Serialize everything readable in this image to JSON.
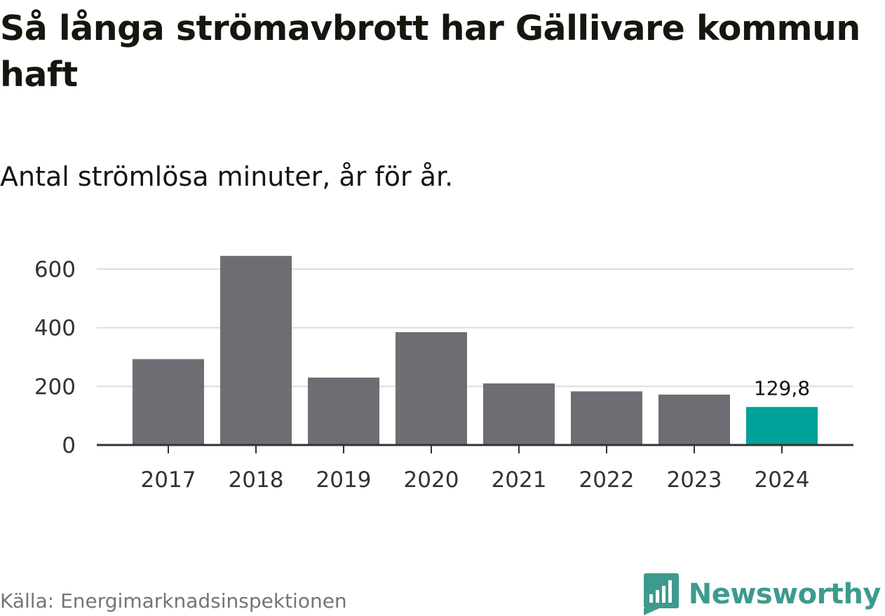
{
  "header": {
    "title": "Så långa strömavbrott har Gällivare kommun haft",
    "subtitle": "Antal strömlösa minuter, år för år."
  },
  "footer": {
    "source": "Källa: Energimarknadsinspektionen",
    "brand": "Newsworthy"
  },
  "colors": {
    "bar_default": "#6e6d74",
    "bar_highlight": "#00a39a",
    "grid": "#dcdcdc",
    "axis": "#333333",
    "brand": "#3c9b8d"
  },
  "chart_data": {
    "type": "bar",
    "title": "Så långa strömavbrott har Gällivare kommun haft",
    "subtitle": "Antal strömlösa minuter, år för år.",
    "xlabel": "",
    "ylabel": "",
    "categories": [
      "2017",
      "2018",
      "2019",
      "2020",
      "2021",
      "2022",
      "2023",
      "2024"
    ],
    "values": [
      293,
      645,
      230,
      385,
      210,
      183,
      172,
      129.8
    ],
    "highlight_index": 7,
    "data_labels": [
      {
        "index": 7,
        "text": "129,8"
      }
    ],
    "ylim": [
      0,
      650
    ],
    "yticks": [
      0,
      200,
      400,
      600
    ],
    "ytick_labels": [
      "0",
      "200",
      "400",
      "600"
    ],
    "grid": true
  }
}
